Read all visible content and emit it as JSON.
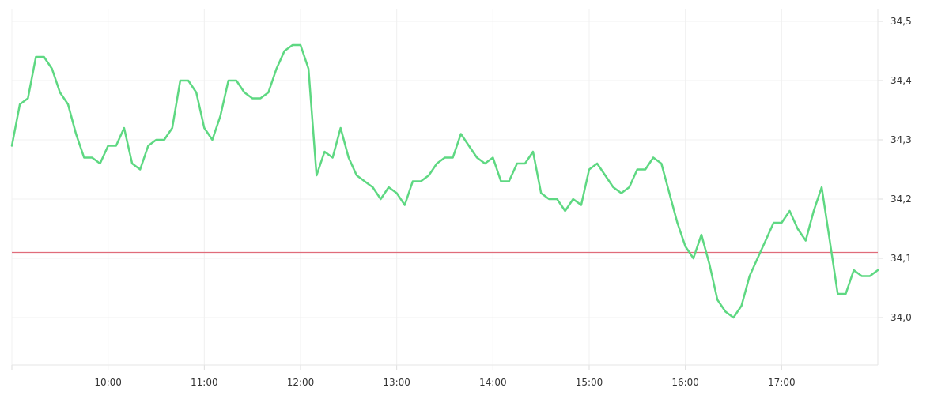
{
  "chart_data": {
    "type": "line",
    "title": "",
    "xlabel": "",
    "ylabel": "",
    "x_range": [
      "09:00",
      "18:00"
    ],
    "ylim": [
      33.92,
      34.52
    ],
    "grid": true,
    "y_axis_position": "right",
    "x_ticks": [
      "10:00",
      "11:00",
      "12:00",
      "13:00",
      "14:00",
      "15:00",
      "16:00",
      "17:00"
    ],
    "y_ticks": [
      "34,0",
      "34,1",
      "34,2",
      "34,3",
      "34,4",
      "34,5"
    ],
    "reference_line": {
      "value": 34.11,
      "color": "#e06c7a"
    },
    "series": [
      {
        "color": "#5ed882",
        "x": [
          "09:00",
          "09:05",
          "09:10",
          "09:15",
          "09:20",
          "09:25",
          "09:30",
          "09:35",
          "09:40",
          "09:45",
          "09:50",
          "09:55",
          "10:00",
          "10:05",
          "10:10",
          "10:15",
          "10:20",
          "10:25",
          "10:30",
          "10:35",
          "10:40",
          "10:45",
          "10:50",
          "10:55",
          "11:00",
          "11:05",
          "11:10",
          "11:15",
          "11:20",
          "11:25",
          "11:30",
          "11:35",
          "11:40",
          "11:45",
          "11:50",
          "11:55",
          "12:00",
          "12:05",
          "12:10",
          "12:15",
          "12:20",
          "12:25",
          "12:30",
          "12:35",
          "12:40",
          "12:45",
          "12:50",
          "12:55",
          "13:00",
          "13:05",
          "13:10",
          "13:15",
          "13:20",
          "13:25",
          "13:30",
          "13:35",
          "13:40",
          "13:45",
          "13:50",
          "13:55",
          "14:00",
          "14:05",
          "14:10",
          "14:15",
          "14:20",
          "14:25",
          "14:30",
          "14:35",
          "14:40",
          "14:45",
          "14:50",
          "14:55",
          "15:00",
          "15:05",
          "15:10",
          "15:15",
          "15:20",
          "15:25",
          "15:30",
          "15:35",
          "15:40",
          "15:45",
          "15:50",
          "15:55",
          "16:00",
          "16:05",
          "16:10",
          "16:15",
          "16:20",
          "16:25",
          "16:30",
          "16:35",
          "16:40",
          "16:45",
          "16:50",
          "16:55",
          "17:00",
          "17:05",
          "17:10",
          "17:15",
          "17:20",
          "17:25",
          "17:30",
          "17:35",
          "17:40",
          "17:45",
          "17:50",
          "17:55",
          "18:00"
        ],
        "values": [
          34.29,
          34.36,
          34.37,
          34.44,
          34.44,
          34.42,
          34.38,
          34.36,
          34.31,
          34.27,
          34.27,
          34.26,
          34.29,
          34.29,
          34.32,
          34.26,
          34.25,
          34.29,
          34.3,
          34.3,
          34.32,
          34.4,
          34.4,
          34.38,
          34.32,
          34.3,
          34.34,
          34.4,
          34.4,
          34.38,
          34.37,
          34.37,
          34.38,
          34.42,
          34.45,
          34.46,
          34.46,
          34.42,
          34.24,
          34.28,
          34.27,
          34.32,
          34.27,
          34.24,
          34.23,
          34.22,
          34.2,
          34.22,
          34.21,
          34.19,
          34.23,
          34.23,
          34.24,
          34.26,
          34.27,
          34.27,
          34.31,
          34.29,
          34.27,
          34.26,
          34.27,
          34.23,
          34.23,
          34.26,
          34.26,
          34.28,
          34.21,
          34.2,
          34.2,
          34.18,
          34.2,
          34.19,
          34.25,
          34.26,
          34.24,
          34.22,
          34.21,
          34.22,
          34.25,
          34.25,
          34.27,
          34.26,
          34.21,
          34.16,
          34.12,
          34.1,
          34.14,
          34.09,
          34.03,
          34.01,
          34.0,
          34.02,
          34.07,
          34.1,
          34.13,
          34.16,
          34.16,
          34.18,
          34.15,
          34.13,
          34.18,
          34.22,
          34.13,
          34.04,
          34.04,
          34.08,
          34.07,
          34.07,
          34.08
        ]
      }
    ]
  }
}
